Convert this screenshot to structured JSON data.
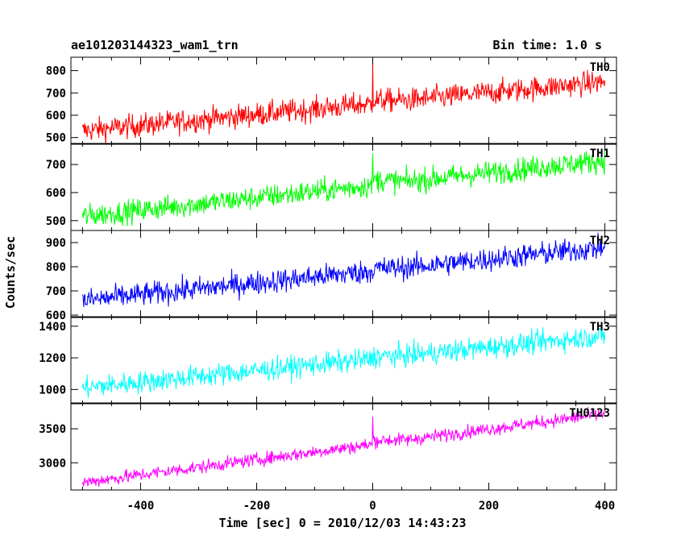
{
  "chart_data": {
    "type": "line",
    "title": "ae101203144323_wam1_trn",
    "subtitle": "Bin time: 1.0 s",
    "xlabel": "Time [sec] 0 = 2010/12/03 14:43:23",
    "ylabel": "Counts/sec",
    "xlim": [
      -520,
      420
    ],
    "xticks": [
      -400,
      -200,
      0,
      200,
      400
    ],
    "x_range": [
      -500,
      400
    ],
    "panels": [
      {
        "name": "TH0",
        "color": "#ff0000",
        "ylim": [
          470,
          860
        ],
        "yticks": [
          500,
          600,
          700,
          800
        ],
        "start": 530,
        "end": 750,
        "noise": 38,
        "spike": {
          "x": 0,
          "y": 840
        },
        "step": {
          "x": 0,
          "delta": 15
        }
      },
      {
        "name": "TH1",
        "color": "#00ff00",
        "ylim": [
          465,
          775
        ],
        "yticks": [
          500,
          600,
          700
        ],
        "start": 515,
        "end": 715,
        "noise": 30,
        "spike": {
          "x": 0,
          "y": 740
        },
        "step": {
          "x": 0,
          "delta": 20
        }
      },
      {
        "name": "TH2",
        "color": "#0000ff",
        "ylim": [
          590,
          950
        ],
        "yticks": [
          600,
          700,
          800,
          900
        ],
        "start": 660,
        "end": 880,
        "noise": 35,
        "spike": null,
        "step": {
          "x": 0,
          "delta": 10
        }
      },
      {
        "name": "TH3",
        "color": "#00ffff",
        "ylim": [
          910,
          1460
        ],
        "yticks": [
          1000,
          1200,
          1400
        ],
        "start": 1010,
        "end": 1340,
        "noise": 50,
        "spike": null,
        "step": {
          "x": 0,
          "delta": 15
        }
      },
      {
        "name": "TH0123",
        "color": "#ff00ff",
        "ylim": [
          2600,
          3880
        ],
        "yticks": [
          3000,
          3500
        ],
        "start": 2710,
        "end": 3720,
        "noise": 70,
        "spike": {
          "x": 0,
          "y": 3680
        },
        "step": {
          "x": 0,
          "delta": 60
        }
      }
    ]
  }
}
